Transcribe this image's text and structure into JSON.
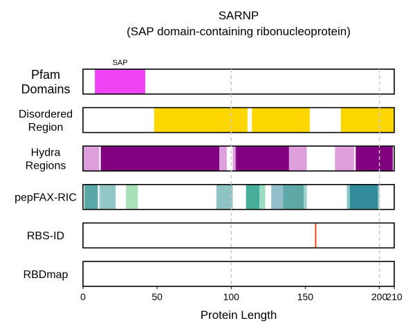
{
  "chart_data": {
    "type": "track-plot",
    "title": "SARNP",
    "subtitle": "(SAP domain-containing ribonucleoprotein)",
    "xlabel": "Protein Length",
    "xlim": [
      0,
      210
    ],
    "xticks": [
      0,
      50,
      100,
      150,
      200,
      210
    ],
    "gridlines": [
      100,
      200
    ],
    "tracks": [
      {
        "label_lines": [
          "Pfam",
          "Domains"
        ],
        "segments": [
          {
            "start": 8,
            "end": 42,
            "color": "#ee44f4",
            "label": "SAP"
          }
        ]
      },
      {
        "label_lines": [
          "Disordered",
          "Region"
        ],
        "segments": [
          {
            "start": 48,
            "end": 111,
            "color": "#ffd700"
          },
          {
            "start": 114,
            "end": 153,
            "color": "#ffd700"
          },
          {
            "start": 174,
            "end": 210,
            "color": "#ffd700"
          }
        ]
      },
      {
        "label_lines": [
          "Hydra",
          "Regions"
        ],
        "segments": [
          {
            "start": 0,
            "end": 11,
            "color": "#dda0dd"
          },
          {
            "start": 12,
            "end": 92,
            "color": "#800080"
          },
          {
            "start": 92,
            "end": 97,
            "color": "#dda0dd"
          },
          {
            "start": 101,
            "end": 103,
            "color": "#dda0dd"
          },
          {
            "start": 103,
            "end": 104,
            "color": "#800080"
          },
          {
            "start": 104,
            "end": 139,
            "color": "#800080"
          },
          {
            "start": 139,
            "end": 151,
            "color": "#dda0dd"
          },
          {
            "start": 170,
            "end": 183,
            "color": "#dda0dd"
          },
          {
            "start": 184,
            "end": 209,
            "color": "#800080"
          }
        ]
      },
      {
        "label_lines": [
          "pepFAX-RIC"
        ],
        "segments": [
          {
            "start": 1,
            "end": 10,
            "color": "#5aa7a7"
          },
          {
            "start": 11,
            "end": 12,
            "color": "#9ccccc"
          },
          {
            "start": 12,
            "end": 22,
            "color": "#93c7c7"
          },
          {
            "start": 29,
            "end": 37,
            "color": "#a8e0b8"
          },
          {
            "start": 90,
            "end": 101,
            "color": "#8fc2c2"
          },
          {
            "start": 110,
            "end": 119,
            "color": "#47af97"
          },
          {
            "start": 119,
            "end": 123,
            "color": "#9cdcc0"
          },
          {
            "start": 127,
            "end": 135,
            "color": "#94bfca"
          },
          {
            "start": 135,
            "end": 149,
            "color": "#5ea8a8"
          },
          {
            "start": 149,
            "end": 151,
            "color": "#9cd0cc"
          },
          {
            "start": 178,
            "end": 180,
            "color": "#8fc8c8"
          },
          {
            "start": 180,
            "end": 199,
            "color": "#338c99"
          },
          {
            "start": 199,
            "end": 200,
            "color": "#9ccccc"
          }
        ]
      },
      {
        "label_lines": [
          "RBS-ID"
        ],
        "segments": [
          {
            "start": 157,
            "end": 157,
            "color": "#ff4500",
            "kind": "line"
          }
        ]
      },
      {
        "label_lines": [
          "RBDmap"
        ],
        "segments": []
      }
    ]
  }
}
